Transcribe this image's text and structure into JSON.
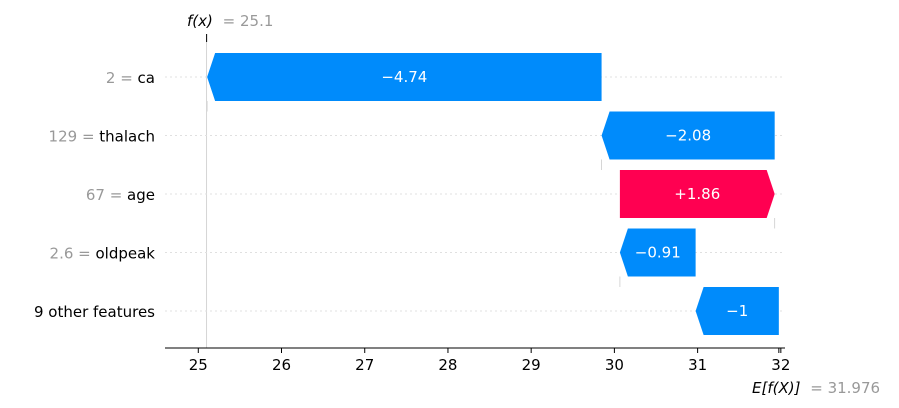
{
  "chart_data": {
    "type": "waterfall",
    "fx_label": "f(x)",
    "fx_value_text": "= 25.1",
    "fx": 25.1,
    "base_label": "E[f(X)]",
    "base_value_text": "= 31.976",
    "base_value": 31.976,
    "xlim": [
      24.6,
      32.05
    ],
    "xticks": [
      25,
      26,
      27,
      28,
      29,
      30,
      31,
      32
    ],
    "features": [
      {
        "value_text": "2 = ",
        "name": "ca",
        "shap": -4.74,
        "label": "−4.74"
      },
      {
        "value_text": "129 = ",
        "name": "thalach",
        "shap": -2.08,
        "label": "−2.08"
      },
      {
        "value_text": "67 = ",
        "name": "age",
        "shap": 1.86,
        "label": "+1.86"
      },
      {
        "value_text": "2.6 = ",
        "name": "oldpeak",
        "shap": -0.91,
        "label": "−0.91"
      },
      {
        "value_text": "",
        "name": "9 other features",
        "shap": -1.0,
        "label": "−1"
      }
    ],
    "colors": {
      "positive": "#ff0051",
      "negative": "#008bfb",
      "grid": "#cccccc"
    }
  }
}
